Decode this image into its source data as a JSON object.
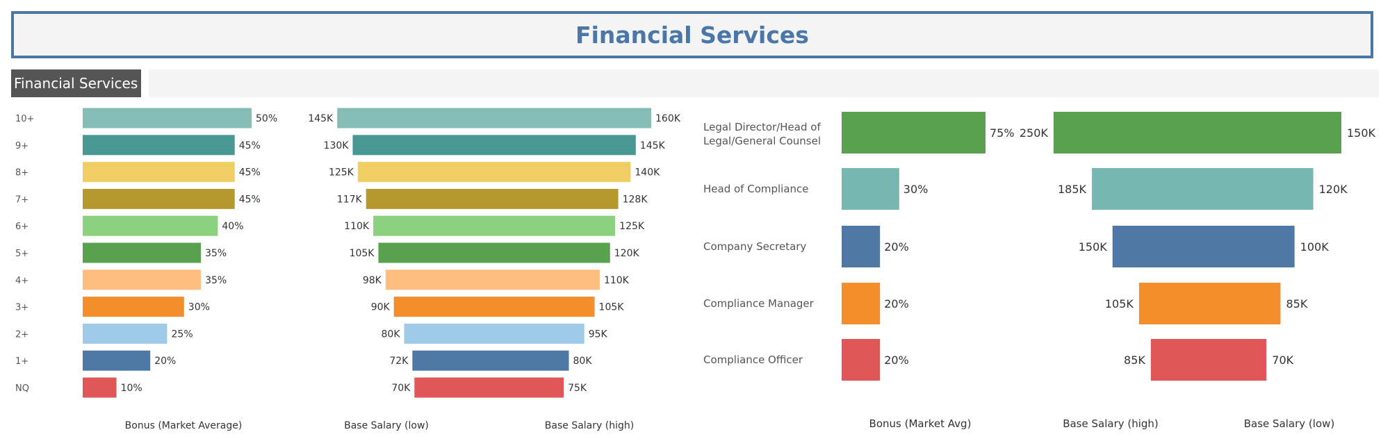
{
  "title": "Financial Services",
  "tab_label": "Financial Services",
  "chart_data": [
    {
      "type": "bar",
      "orientation": "horizontal",
      "title": "Financial Services",
      "xlabel": "Bonus (Market Average)",
      "categories": [
        "10+",
        "9+",
        "8+",
        "7+",
        "6+",
        "5+",
        "4+",
        "3+",
        "2+",
        "1+",
        "NQ"
      ],
      "values": [
        50,
        45,
        45,
        45,
        40,
        35,
        35,
        30,
        25,
        20,
        10
      ],
      "value_labels": [
        "50%",
        "45%",
        "45%",
        "45%",
        "40%",
        "35%",
        "35%",
        "30%",
        "25%",
        "20%",
        "10%"
      ],
      "colors": [
        "#86bcb6",
        "#499894",
        "#f1ce63",
        "#b6992d",
        "#8cd17d",
        "#59a14f",
        "#ffbe7d",
        "#f28e2b",
        "#a0cbe8",
        "#4e79a7",
        "#e15759"
      ],
      "xlim": [
        0,
        50
      ]
    },
    {
      "type": "bar",
      "orientation": "horizontal-diverging",
      "categories": [
        "10+",
        "9+",
        "8+",
        "7+",
        "6+",
        "5+",
        "4+",
        "3+",
        "2+",
        "1+",
        "NQ"
      ],
      "series": [
        {
          "name": "Base Salary (low)",
          "values": [
            145,
            130,
            125,
            117,
            110,
            105,
            98,
            90,
            80,
            72,
            70
          ],
          "labels": [
            "145K",
            "130K",
            "125K",
            "117K",
            "110K",
            "105K",
            "98K",
            "90K",
            "80K",
            "72K",
            "70K"
          ]
        },
        {
          "name": "Base Salary (high)",
          "values": [
            160,
            145,
            140,
            128,
            125,
            120,
            110,
            105,
            95,
            80,
            75
          ],
          "labels": [
            "160K",
            "145K",
            "140K",
            "128K",
            "125K",
            "120K",
            "110K",
            "105K",
            "95K",
            "80K",
            "75K"
          ]
        }
      ],
      "colors": [
        "#86bcb6",
        "#499894",
        "#f1ce63",
        "#b6992d",
        "#8cd17d",
        "#59a14f",
        "#ffbe7d",
        "#f28e2b",
        "#a0cbe8",
        "#4e79a7",
        "#e15759"
      ],
      "xlabels": [
        "Base Salary (low)",
        "Base Salary (high)"
      ]
    },
    {
      "type": "bar",
      "orientation": "horizontal",
      "xlabel": "Bonus (Market Avg)",
      "categories": [
        "Legal Director/Head of Legal/General Counsel",
        "Head of Compliance",
        "Company Secretary",
        "Compliance Manager",
        "Compliance Officer"
      ],
      "category_lines": [
        [
          "Legal Director/Head of",
          "Legal/General Counsel"
        ],
        [
          "Head of Compliance"
        ],
        [
          "Company Secretary"
        ],
        [
          "Compliance Manager"
        ],
        [
          "Compliance Officer"
        ]
      ],
      "values": [
        75,
        30,
        20,
        20,
        20
      ],
      "value_labels": [
        "75%",
        "30%",
        "20%",
        "20%",
        "20%"
      ],
      "colors": [
        "#59a14f",
        "#76b7b2",
        "#4e79a7",
        "#f28e2b",
        "#e15759"
      ],
      "xlim": [
        0,
        75
      ]
    },
    {
      "type": "bar",
      "orientation": "horizontal-diverging",
      "categories": [
        "Legal Director/Head of Legal/General Counsel",
        "Head of Compliance",
        "Company Secretary",
        "Compliance Manager",
        "Compliance Officer"
      ],
      "series": [
        {
          "name": "Base Salary (high)",
          "values": [
            250,
            185,
            150,
            105,
            85
          ],
          "labels": [
            "250K",
            "185K",
            "150K",
            "105K",
            "85K"
          ]
        },
        {
          "name": "Base Salary (low)",
          "values": [
            150,
            120,
            100,
            85,
            70
          ],
          "labels": [
            "150K",
            "120K",
            "100K",
            "85K",
            "70K"
          ]
        }
      ],
      "colors": [
        "#59a14f",
        "#76b7b2",
        "#4e79a7",
        "#f28e2b",
        "#e15759"
      ],
      "xlabels": [
        "Base Salary (high)",
        "Base Salary (low)"
      ]
    }
  ]
}
